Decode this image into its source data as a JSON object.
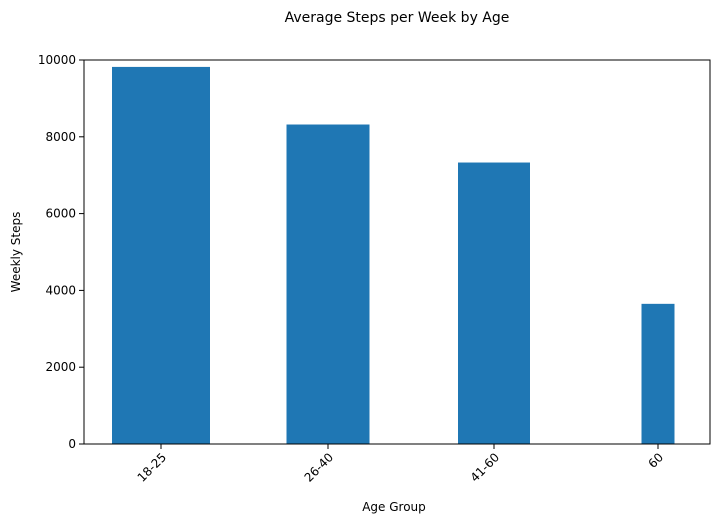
{
  "chart_data": {
    "type": "bar",
    "title": "Average Steps per Week by Age",
    "xlabel": "Age Group",
    "ylabel": "Weekly Steps",
    "ylim": [
      0,
      10000
    ],
    "yticks": [
      0,
      2000,
      4000,
      6000,
      8000,
      10000
    ],
    "categories": [
      "18-25",
      "26-40",
      "41-60",
      "60"
    ],
    "values": [
      9820,
      8320,
      7330,
      3650
    ],
    "bar_color": "#1f77b4",
    "grid": false,
    "legend": "none"
  }
}
